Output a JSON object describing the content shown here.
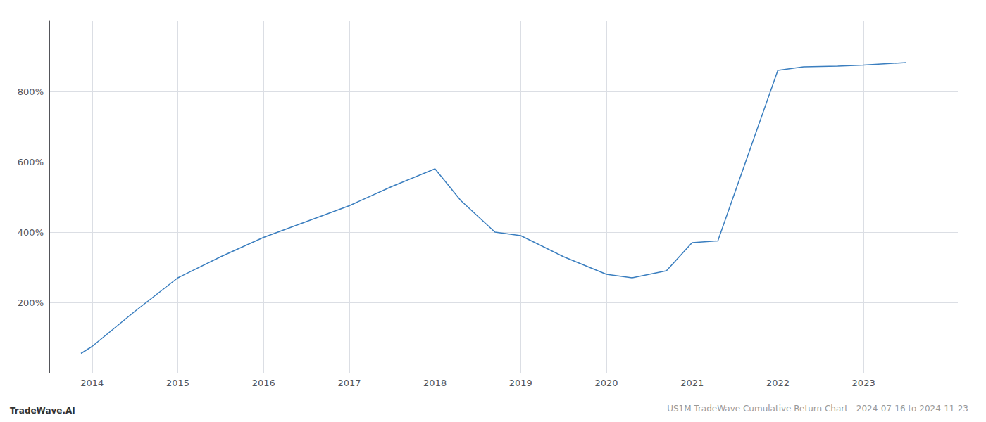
{
  "chart_data": {
    "type": "line",
    "title": "US1M TradeWave Cumulative Return Chart - 2024-07-16 to 2024-11-23",
    "annotations": [
      "TradeWave.AI"
    ],
    "x": [
      2013.87,
      2014.0,
      2014.5,
      2015.0,
      2015.5,
      2016.0,
      2016.5,
      2017.0,
      2017.5,
      2018.0,
      2018.3,
      2018.7,
      2019.0,
      2019.5,
      2020.0,
      2020.3,
      2020.7,
      2021.0,
      2021.3,
      2022.0,
      2022.3,
      2022.7,
      2023.0,
      2023.5
    ],
    "values": [
      55,
      75,
      175,
      270,
      330,
      385,
      430,
      475,
      530,
      580,
      490,
      400,
      390,
      330,
      280,
      270,
      290,
      370,
      375,
      860,
      870,
      872,
      875,
      882
    ],
    "color": "#3a7ebf",
    "xlim": [
      2013.5,
      2024.1
    ],
    "xticks": [
      2014,
      2015,
      2016,
      2017,
      2018,
      2019,
      2020,
      2021,
      2022,
      2023
    ],
    "ylim": [
      0,
      1000
    ],
    "yticks": [
      {
        "value": 200,
        "label": "200%"
      },
      {
        "value": 400,
        "label": "400%"
      },
      {
        "value": 600,
        "label": "600%"
      },
      {
        "value": 800,
        "label": "800%"
      }
    ],
    "grid": true
  }
}
